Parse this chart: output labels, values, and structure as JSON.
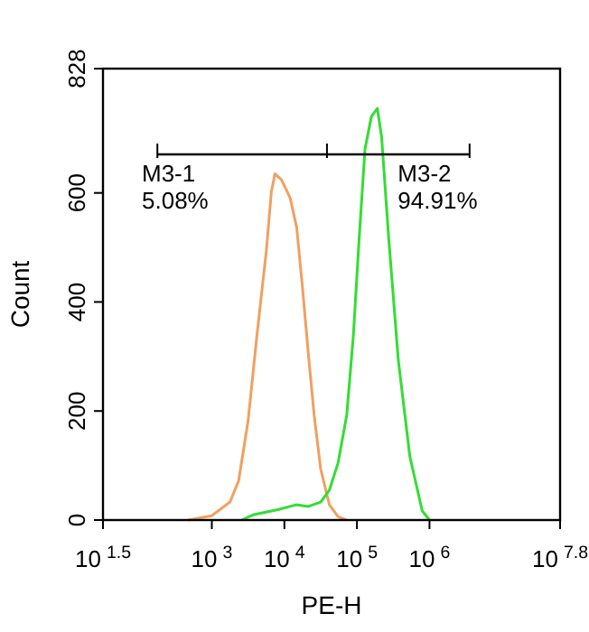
{
  "chart_data": {
    "type": "line",
    "xlabel": "PE-H",
    "ylabel": "Count",
    "log": "x",
    "xlim": [
      31.6,
      63100000
    ],
    "ylim": [
      0,
      828
    ],
    "xticks": [
      {
        "value": 31.6,
        "label": "10$^{1.5}$"
      },
      {
        "value": 1000,
        "label": "10$^{3}$"
      },
      {
        "value": 10000,
        "label": "10$^{4}$"
      },
      {
        "value": 100000,
        "label": "10$^{5}$"
      },
      {
        "value": 1000000,
        "label": "10$^{6}$"
      },
      {
        "value": 63100000,
        "label": "10$^{7.8}$"
      }
    ],
    "yticks": [
      0,
      200,
      400,
      600,
      828
    ],
    "grid": false,
    "legend": false,
    "marker": "none",
    "line_style": "solid",
    "annotations": [
      "M3-1",
      "5.08%",
      "M3-2",
      "94.91%"
    ],
    "series": [
      {
        "color": "#f0a060",
        "x": [
          470,
          1000,
          1780,
          2340,
          3160,
          4170,
          5620,
          6610,
          7410,
          9120,
          12000,
          14800,
          17800,
          21400,
          25700,
          31600,
          41700,
          55000,
          72400
        ],
        "values": [
          0,
          8,
          33,
          72,
          182,
          337,
          492,
          602,
          635,
          624,
          591,
          536,
          425,
          304,
          193,
          94,
          28,
          6,
          0
        ]
      },
      {
        "color": "#33dd33",
        "x": [
          2570,
          3800,
          8130,
          14500,
          21400,
          31600,
          41700,
          55000,
          72400,
          89100,
          107000,
          129000,
          158000,
          191000,
          219000,
          275000,
          372000,
          537000,
          794000,
          1000000
        ],
        "values": [
          0,
          10,
          19,
          28,
          25,
          33,
          55,
          105,
          193,
          337,
          514,
          680,
          740,
          755,
          702,
          514,
          293,
          116,
          17,
          0
        ]
      }
    ]
  }
}
